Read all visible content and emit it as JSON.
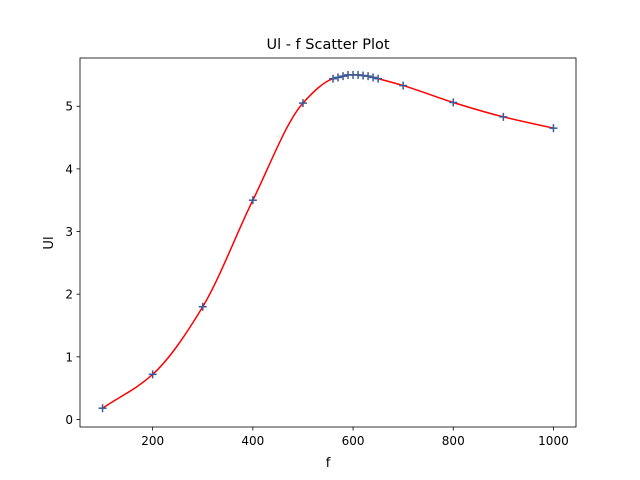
{
  "chart_data": {
    "type": "scatter",
    "title": "Ul - f Scatter Plot",
    "xlabel": "f",
    "ylabel": "Ul",
    "xlim": [
      55,
      1045
    ],
    "ylim": [
      -0.12,
      5.77
    ],
    "xticks": [
      200,
      400,
      600,
      800,
      1000
    ],
    "yticks": [
      0,
      1,
      2,
      3,
      4,
      5
    ],
    "grid": false,
    "series": [
      {
        "marker": "+",
        "color": "#3b5998",
        "x": [
          100,
          200,
          300,
          400,
          500,
          560,
          570,
          580,
          590,
          600,
          610,
          620,
          630,
          640,
          650,
          700,
          800,
          900,
          1000
        ],
        "y": [
          0.18,
          0.72,
          1.8,
          3.5,
          5.05,
          5.44,
          5.46,
          5.48,
          5.5,
          5.5,
          5.5,
          5.49,
          5.48,
          5.46,
          5.44,
          5.33,
          5.06,
          4.83,
          4.65
        ]
      },
      {
        "line": "smooth",
        "color": "#ff0000",
        "x": [
          100,
          200,
          300,
          400,
          500,
          560,
          570,
          580,
          590,
          600,
          610,
          620,
          630,
          640,
          650,
          700,
          800,
          900,
          1000
        ],
        "y": [
          0.18,
          0.72,
          1.8,
          3.5,
          5.05,
          5.44,
          5.46,
          5.48,
          5.5,
          5.5,
          5.5,
          5.49,
          5.48,
          5.46,
          5.44,
          5.33,
          5.06,
          4.83,
          4.65
        ]
      }
    ]
  }
}
